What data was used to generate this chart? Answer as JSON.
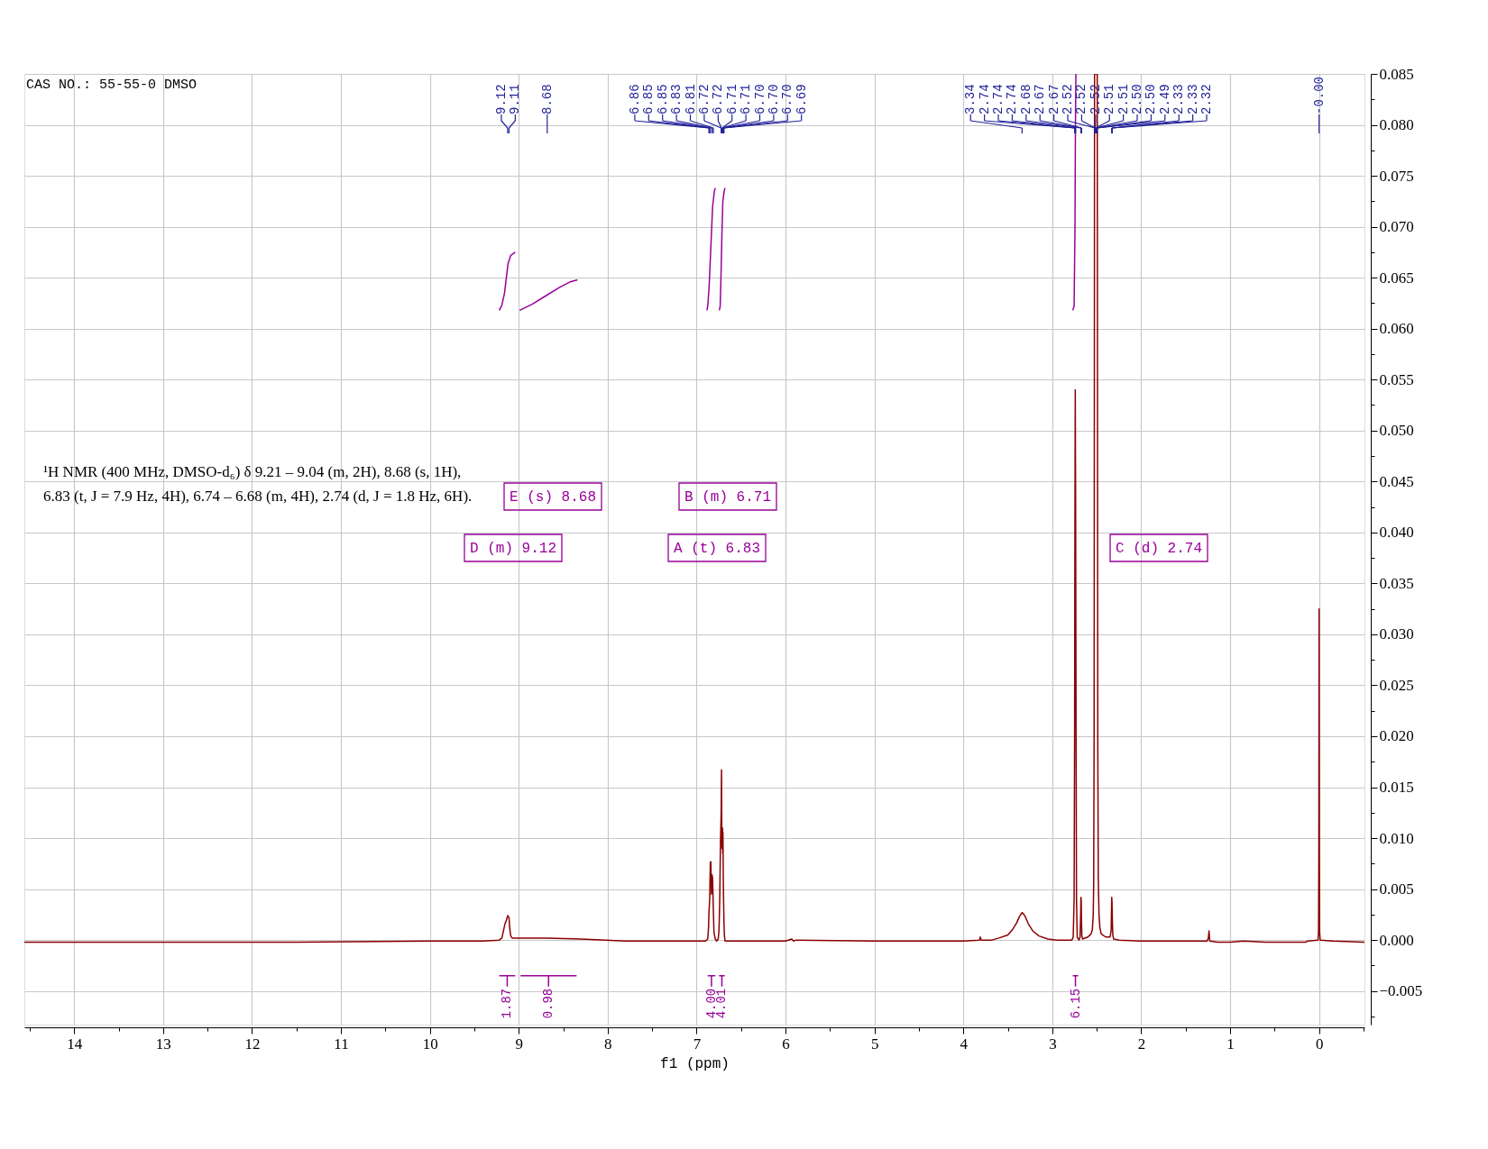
{
  "chart_data": {
    "type": "line",
    "xlabel": "f1 (ppm)",
    "xlim": [
      14.56,
      -0.51
    ],
    "ylim": [
      -0.0083,
      0.085
    ],
    "xticks": [
      {
        "value": 14.5,
        "label": null
      },
      14,
      {
        "value": 13.5,
        "label": null
      },
      13,
      {
        "value": 12.5,
        "label": null
      },
      12,
      {
        "value": 11.5,
        "label": null
      },
      11,
      {
        "value": 10.5,
        "label": null
      },
      10,
      {
        "value": 9.5,
        "label": null
      },
      9,
      {
        "value": 8.5,
        "label": null
      },
      8,
      {
        "value": 7.5,
        "label": null
      },
      7,
      {
        "value": 6.5,
        "label": null
      },
      6,
      {
        "value": 5.5,
        "label": null
      },
      5,
      {
        "value": 4.5,
        "label": null
      },
      4,
      {
        "value": 3.5,
        "label": null
      },
      3,
      {
        "value": 2.5,
        "label": null
      },
      2,
      {
        "value": 1.5,
        "label": null
      },
      1,
      {
        "value": 0.5,
        "label": null
      },
      0,
      {
        "value": -0.5,
        "label": null
      }
    ],
    "yticks": [
      {
        "value": -0.0075,
        "label": null
      },
      {
        "value": -0.005,
        "label": "−0.005"
      },
      {
        "value": -0.0025,
        "label": null
      },
      {
        "value": 0,
        "label": "0.000"
      },
      {
        "value": 0.0025,
        "label": null
      },
      {
        "value": 0.005,
        "label": "0.005"
      },
      {
        "value": 0.0075,
        "label": null
      },
      {
        "value": 0.01,
        "label": "0.010"
      },
      {
        "value": 0.0125,
        "label": null
      },
      {
        "value": 0.015,
        "label": "0.015"
      },
      {
        "value": 0.0175,
        "label": null
      },
      {
        "value": 0.02,
        "label": "0.020"
      },
      {
        "value": 0.0225,
        "label": null
      },
      {
        "value": 0.025,
        "label": "0.025"
      },
      {
        "value": 0.0275,
        "label": null
      },
      {
        "value": 0.03,
        "label": "0.030"
      },
      {
        "value": 0.0325,
        "label": null
      },
      {
        "value": 0.035,
        "label": "0.035"
      },
      {
        "value": 0.0375,
        "label": null
      },
      {
        "value": 0.04,
        "label": "0.040"
      },
      {
        "value": 0.0425,
        "label": null
      },
      {
        "value": 0.045,
        "label": "0.045"
      },
      {
        "value": 0.0475,
        "label": null
      },
      {
        "value": 0.05,
        "label": "0.050"
      },
      {
        "value": 0.0525,
        "label": null
      },
      {
        "value": 0.055,
        "label": "0.055"
      },
      {
        "value": 0.0575,
        "label": null
      },
      {
        "value": 0.06,
        "label": "0.060"
      },
      {
        "value": 0.0625,
        "label": null
      },
      {
        "value": 0.065,
        "label": "0.065"
      },
      {
        "value": 0.0675,
        "label": null
      },
      {
        "value": 0.07,
        "label": "0.070"
      },
      {
        "value": 0.0725,
        "label": null
      },
      {
        "value": 0.075,
        "label": "0.075"
      },
      {
        "value": 0.0775,
        "label": null
      },
      {
        "value": 0.08,
        "label": "0.080"
      },
      {
        "value": 0.0825,
        "label": null
      },
      {
        "value": 0.085,
        "label": "0.085"
      }
    ],
    "grid": true,
    "series": [
      {
        "color": "#8b0000",
        "x": [
          14.56,
          13.0,
          11.5,
          10.0,
          9.4,
          9.22,
          9.19,
          9.17,
          9.155,
          9.14,
          9.125,
          9.11,
          9.1,
          9.09,
          9.075,
          9.0,
          8.68,
          8.3,
          7.8,
          7.2,
          6.9,
          6.875,
          6.866,
          6.862,
          6.853,
          6.846,
          6.84,
          6.833,
          6.826,
          6.82,
          6.812,
          6.805,
          6.79,
          6.775,
          6.757,
          6.748,
          6.74,
          6.732,
          6.724,
          6.72,
          6.716,
          6.712,
          6.709,
          6.706,
          6.704,
          6.7,
          6.697,
          6.692,
          6.687,
          6.68,
          6.6,
          6.0,
          5.93,
          5.91,
          5.88,
          5.0,
          4.0,
          3.82,
          3.81,
          3.8,
          3.68,
          3.6,
          3.5,
          3.45,
          3.4,
          3.37,
          3.34,
          3.31,
          3.27,
          3.22,
          3.15,
          3.05,
          2.95,
          2.78,
          2.765,
          2.755,
          2.749,
          2.746,
          2.742,
          2.738,
          2.733,
          2.728,
          2.72,
          2.7,
          2.688,
          2.681,
          2.678,
          2.675,
          2.672,
          2.668,
          2.66,
          2.6,
          2.565,
          2.55,
          2.54,
          2.535,
          2.53,
          2.525,
          2.495,
          2.489,
          2.483,
          2.475,
          2.465,
          2.45,
          2.4,
          2.35,
          2.338,
          2.332,
          2.329,
          2.325,
          2.32,
          2.31,
          2.25,
          2.0,
          1.5,
          1.26,
          1.245,
          1.238,
          1.23,
          1.14,
          1.0,
          0.85,
          0.6,
          0.15,
          0.13,
          0.012,
          0.006,
          0.003,
          0.0,
          -0.003,
          -0.006,
          -0.012,
          -0.16,
          -0.51
        ],
        "values": [
          -0.0002,
          -0.0002,
          -0.0002,
          -0.0001,
          -0.0001,
          0.0,
          0.0002,
          0.001,
          0.0016,
          0.0019,
          0.0024,
          0.0022,
          0.001,
          0.0004,
          0.0002,
          0.0002,
          0.0002,
          0.0001,
          -0.0001,
          -0.0001,
          -0.0001,
          0.0001,
          0.0012,
          0.0026,
          0.004,
          0.0076,
          0.0077,
          0.0045,
          0.0064,
          0.006,
          0.003,
          0.0008,
          0.0001,
          -0.0001,
          0.0001,
          0.001,
          0.004,
          0.0095,
          0.0125,
          0.0167,
          0.009,
          0.0105,
          0.011,
          0.0085,
          0.0106,
          0.006,
          0.004,
          0.0015,
          0.0004,
          -0.0001,
          -0.0001,
          -0.0001,
          0.0001,
          -0.0001,
          0.0,
          -0.0001,
          -0.0001,
          0.0,
          0.0003,
          0.0,
          0.0,
          0.0002,
          0.0005,
          0.001,
          0.0017,
          0.0023,
          0.0027,
          0.0024,
          0.0016,
          0.0009,
          0.0004,
          0.0001,
          0.0,
          0.0,
          0.0003,
          0.004,
          0.0215,
          0.04,
          0.054,
          0.0429,
          0.02,
          0.004,
          0.0003,
          0.0,
          0.0003,
          0.0025,
          0.0042,
          0.0039,
          0.002,
          0.0004,
          0.0001,
          0.0003,
          0.0006,
          0.001,
          0.0025,
          0.0055,
          0.02,
          0.085,
          0.085,
          0.02,
          0.006,
          0.0025,
          0.0012,
          0.0006,
          0.0003,
          0.0003,
          0.001,
          0.0042,
          0.0038,
          0.002,
          0.0005,
          0.0001,
          0.0,
          -0.0001,
          -0.0001,
          -0.0001,
          0.0002,
          0.0009,
          -0.0001,
          -0.0002,
          -0.0002,
          -0.0001,
          -0.0002,
          -0.0002,
          -0.0001,
          0.0,
          0.0008,
          0.008,
          0.0325,
          0.008,
          0.0008,
          0.0,
          -0.0001,
          -0.0002
        ]
      },
      {
        "color": "#990099",
        "x": [
          9.22,
          9.19,
          9.16,
          9.14,
          9.12,
          9.09,
          9.04
        ],
        "values": [
          0.0618,
          0.0623,
          0.0635,
          0.065,
          0.0664,
          0.0672,
          0.0675
        ]
      },
      {
        "color": "#990099",
        "x": [
          8.99,
          8.85,
          8.7,
          8.55,
          8.42,
          8.34
        ],
        "values": [
          0.0618,
          0.0624,
          0.0632,
          0.064,
          0.0646,
          0.0648
        ]
      },
      {
        "color": "#990099",
        "x": [
          6.885,
          6.875,
          6.86,
          6.84,
          6.82,
          6.8,
          6.79
        ],
        "values": [
          0.0618,
          0.0622,
          0.064,
          0.068,
          0.072,
          0.0735,
          0.0738
        ]
      },
      {
        "color": "#990099",
        "x": [
          6.745,
          6.735,
          6.725,
          6.715,
          6.705,
          6.69,
          6.68
        ],
        "values": [
          0.0618,
          0.0622,
          0.0655,
          0.0695,
          0.0725,
          0.0735,
          0.0738
        ]
      },
      {
        "color": "#990099",
        "x": [
          2.77,
          2.755,
          2.745,
          2.74,
          2.735
        ],
        "values": [
          0.0618,
          0.0622,
          0.07,
          0.08,
          0.085
        ]
      },
      {
        "color": "#990099",
        "x": [
          9.22,
          9.04
        ],
        "values": [
          -0.0035,
          -0.0035
        ]
      },
      {
        "color": "#990099",
        "x": [
          8.98,
          8.35
        ],
        "values": [
          -0.0035,
          -0.0035
        ]
      },
      {
        "color": "#990099",
        "x": [
          6.876,
          6.79
        ],
        "values": [
          -0.0035,
          -0.0035
        ]
      },
      {
        "color": "#990099",
        "x": [
          6.748,
          6.684
        ],
        "values": [
          -0.0035,
          -0.0035
        ]
      },
      {
        "color": "#990099",
        "x": [
          2.77,
          2.71
        ],
        "values": [
          -0.0035,
          -0.0035
        ]
      }
    ],
    "annotations": [
      "CAS NO.: 55-55-0 DMSO",
      {
        "text": "9.12",
        "x": 9.125
      },
      {
        "text": "9.11",
        "x": 9.11
      },
      {
        "text": "8.68",
        "x": 8.68
      },
      {
        "text": "6.86",
        "x": 6.862
      },
      {
        "text": "6.85",
        "x": 6.853
      },
      {
        "text": "6.85",
        "x": 6.846
      },
      {
        "text": "6.83",
        "x": 6.826
      },
      {
        "text": "6.81",
        "x": 6.812
      },
      {
        "text": "6.72",
        "x": 6.724
      },
      {
        "text": "6.72",
        "x": 6.72
      },
      {
        "text": "6.71",
        "x": 6.712
      },
      {
        "text": "6.71",
        "x": 6.709
      },
      {
        "text": "6.70",
        "x": 6.704
      },
      {
        "text": "6.70",
        "x": 6.7
      },
      {
        "text": "6.70",
        "x": 6.697
      },
      {
        "text": "6.69",
        "x": 6.692
      },
      {
        "text": "3.34",
        "x": 3.34
      },
      {
        "text": "2.74",
        "x": 2.749
      },
      {
        "text": "2.74",
        "x": 2.742
      },
      {
        "text": "2.74",
        "x": 2.738
      },
      {
        "text": "2.68",
        "x": 2.678
      },
      {
        "text": "2.67",
        "x": 2.675
      },
      {
        "text": "2.67",
        "x": 2.672
      },
      {
        "text": "2.52",
        "x": 2.522
      },
      {
        "text": "2.52",
        "x": 2.52
      },
      {
        "text": "2.52",
        "x": 2.518
      },
      {
        "text": "2.51",
        "x": 2.513
      },
      {
        "text": "2.51",
        "x": 2.508
      },
      {
        "text": "2.50",
        "x": 2.503
      },
      {
        "text": "2.50",
        "x": 2.499
      },
      {
        "text": "2.49",
        "x": 2.494
      },
      {
        "text": "2.33",
        "x": 2.332
      },
      {
        "text": "2.33",
        "x": 2.329
      },
      {
        "text": "2.32",
        "x": 2.325
      },
      {
        "text": "-0.00",
        "x": 0.0
      },
      "¹H NMR (400 MHz, DMSO-d₆) δ 9.21 – 9.04 (m, 2H), 8.68 (s, 1H),\n6.83 (t, J = 7.9 Hz, 4H), 6.74 – 6.68 (m, 4H), 2.74 (d, J = 1.8 Hz, 6H).",
      "E (s) 8.68",
      "B (m) 6.71",
      "D (m) 9.12",
      "A (t) 6.83",
      "C (d) 2.74",
      {
        "text": "1.87",
        "x": 9.13,
        "y": -0.0035
      },
      {
        "text": "0.98",
        "x": 8.665,
        "y": -0.0035
      },
      {
        "text": "4.00",
        "x": 6.833,
        "y": -0.0035
      },
      {
        "text": "4.01",
        "x": 6.716,
        "y": -0.0035
      },
      {
        "text": "6.15",
        "x": 2.74,
        "y": -0.0035
      }
    ]
  }
}
